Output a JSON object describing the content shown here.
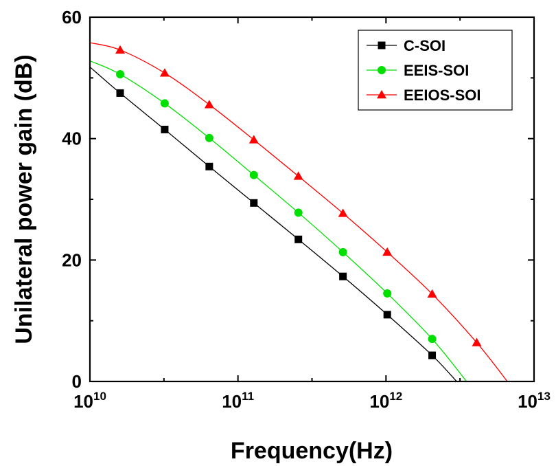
{
  "chart_data": {
    "type": "line",
    "xlabel": "Frequency(Hz)",
    "ylabel": "Unilateral power gain (dB)",
    "xscale": "log",
    "xlim": [
      10000000000.0,
      10000000000000.0
    ],
    "ylim": [
      0,
      60
    ],
    "x_ticks": [
      {
        "value": 10000000000.0,
        "base": "10",
        "exp": "10"
      },
      {
        "value": 100000000000.0,
        "base": "10",
        "exp": "11"
      },
      {
        "value": 1000000000000.0,
        "base": "10",
        "exp": "12"
      },
      {
        "value": 10000000000000.0,
        "base": "10",
        "exp": "13"
      }
    ],
    "y_ticks": [
      0,
      20,
      40,
      60
    ],
    "legend_position": "top-right",
    "grid": false,
    "series": [
      {
        "name": "C-SOI",
        "color": "#000000",
        "marker": "square",
        "line": [
          [
            10000000000.0,
            51.8
          ],
          [
            16000000000.0,
            47.5
          ],
          [
            32000000000.0,
            41.5
          ],
          [
            64000000000.0,
            35.4
          ],
          [
            128000000000.0,
            29.4
          ],
          [
            256000000000.0,
            23.4
          ],
          [
            512000000000.0,
            17.3
          ],
          [
            1020000000000.0,
            11.0
          ],
          [
            2050000000000.0,
            4.3
          ],
          [
            3000000000000.0,
            0
          ]
        ],
        "x": [
          16000000000.0,
          32000000000.0,
          64000000000.0,
          128000000000.0,
          256000000000.0,
          512000000000.0,
          1020000000000.0,
          2050000000000.0
        ],
        "y": [
          47.5,
          41.5,
          35.4,
          29.4,
          23.4,
          17.3,
          11.0,
          4.3
        ]
      },
      {
        "name": "EEIS-SOI",
        "color": "#00e000",
        "marker": "circle",
        "line": [
          [
            10000000000.0,
            52.8
          ],
          [
            16000000000.0,
            50.6
          ],
          [
            32000000000.0,
            45.8
          ],
          [
            64000000000.0,
            40.1
          ],
          [
            128000000000.0,
            34.0
          ],
          [
            256000000000.0,
            27.8
          ],
          [
            512000000000.0,
            21.3
          ],
          [
            1020000000000.0,
            14.5
          ],
          [
            2050000000000.0,
            7.0
          ],
          [
            3500000000000.0,
            0
          ]
        ],
        "x": [
          16000000000.0,
          32000000000.0,
          64000000000.0,
          128000000000.0,
          256000000000.0,
          512000000000.0,
          1020000000000.0,
          2050000000000.0
        ],
        "y": [
          50.6,
          45.8,
          40.1,
          34.0,
          27.8,
          21.3,
          14.5,
          7.0
        ]
      },
      {
        "name": "EEIOS-SOI",
        "color": "#ff0000",
        "marker": "triangle",
        "line": [
          [
            10000000000.0,
            55.8
          ],
          [
            16000000000.0,
            54.6
          ],
          [
            32000000000.0,
            50.8
          ],
          [
            64000000000.0,
            45.6
          ],
          [
            128000000000.0,
            39.8
          ],
          [
            256000000000.0,
            33.8
          ],
          [
            512000000000.0,
            27.7
          ],
          [
            1020000000000.0,
            21.3
          ],
          [
            2050000000000.0,
            14.4
          ],
          [
            4100000000000.0,
            6.4
          ],
          [
            6600000000000.0,
            0
          ]
        ],
        "x": [
          16000000000.0,
          32000000000.0,
          64000000000.0,
          128000000000.0,
          256000000000.0,
          512000000000.0,
          1020000000000.0,
          2050000000000.0,
          4100000000000.0
        ],
        "y": [
          54.6,
          50.8,
          45.6,
          39.8,
          33.8,
          27.7,
          21.3,
          14.4,
          6.4
        ]
      }
    ]
  }
}
